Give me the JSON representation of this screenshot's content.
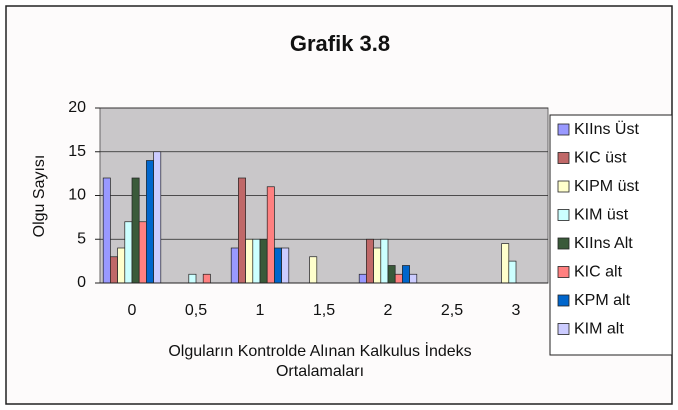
{
  "chart_data": {
    "type": "bar",
    "title": "Grafik 3.8",
    "ylabel": "Olgu Sayısı",
    "xlabel": [
      "Olguların Kontrolde Alınan Kalkulus İndeks",
      "Ortalamaları"
    ],
    "categories": [
      "0",
      "0,5",
      "1",
      "1,5",
      "2",
      "2,5",
      "3"
    ],
    "series": [
      {
        "name": "KIIns Üst",
        "color": "#9999ff",
        "values": [
          12,
          0,
          4,
          0,
          1,
          0,
          0
        ]
      },
      {
        "name": "KIC üst",
        "color": "#c06868",
        "values": [
          3,
          0,
          12,
          0,
          5,
          0,
          0
        ]
      },
      {
        "name": "KIPM üst",
        "color": "#ffffcc",
        "values": [
          4,
          0,
          5,
          3,
          4,
          0,
          4.5
        ]
      },
      {
        "name": "KIM üst",
        "color": "#ccffff",
        "values": [
          7,
          1,
          5,
          0,
          5,
          0,
          2.5
        ]
      },
      {
        "name": "KIIns Alt",
        "color": "#3a5a3a",
        "values": [
          12,
          0,
          5,
          0,
          2,
          0,
          0
        ]
      },
      {
        "name": "KIC alt",
        "color": "#ff8080",
        "values": [
          7,
          1,
          11,
          0,
          1,
          0,
          0
        ]
      },
      {
        "name": "KPM alt",
        "color": "#0066cc",
        "values": [
          14,
          0,
          4,
          0,
          2,
          0,
          0
        ]
      },
      {
        "name": "KIM alt",
        "color": "#ccccff",
        "values": [
          15,
          0,
          4,
          0,
          1,
          0,
          0
        ]
      }
    ],
    "ylim": [
      0,
      20
    ],
    "yticks": [
      0,
      5,
      10,
      15,
      20
    ],
    "grid": true,
    "legend": "right"
  }
}
